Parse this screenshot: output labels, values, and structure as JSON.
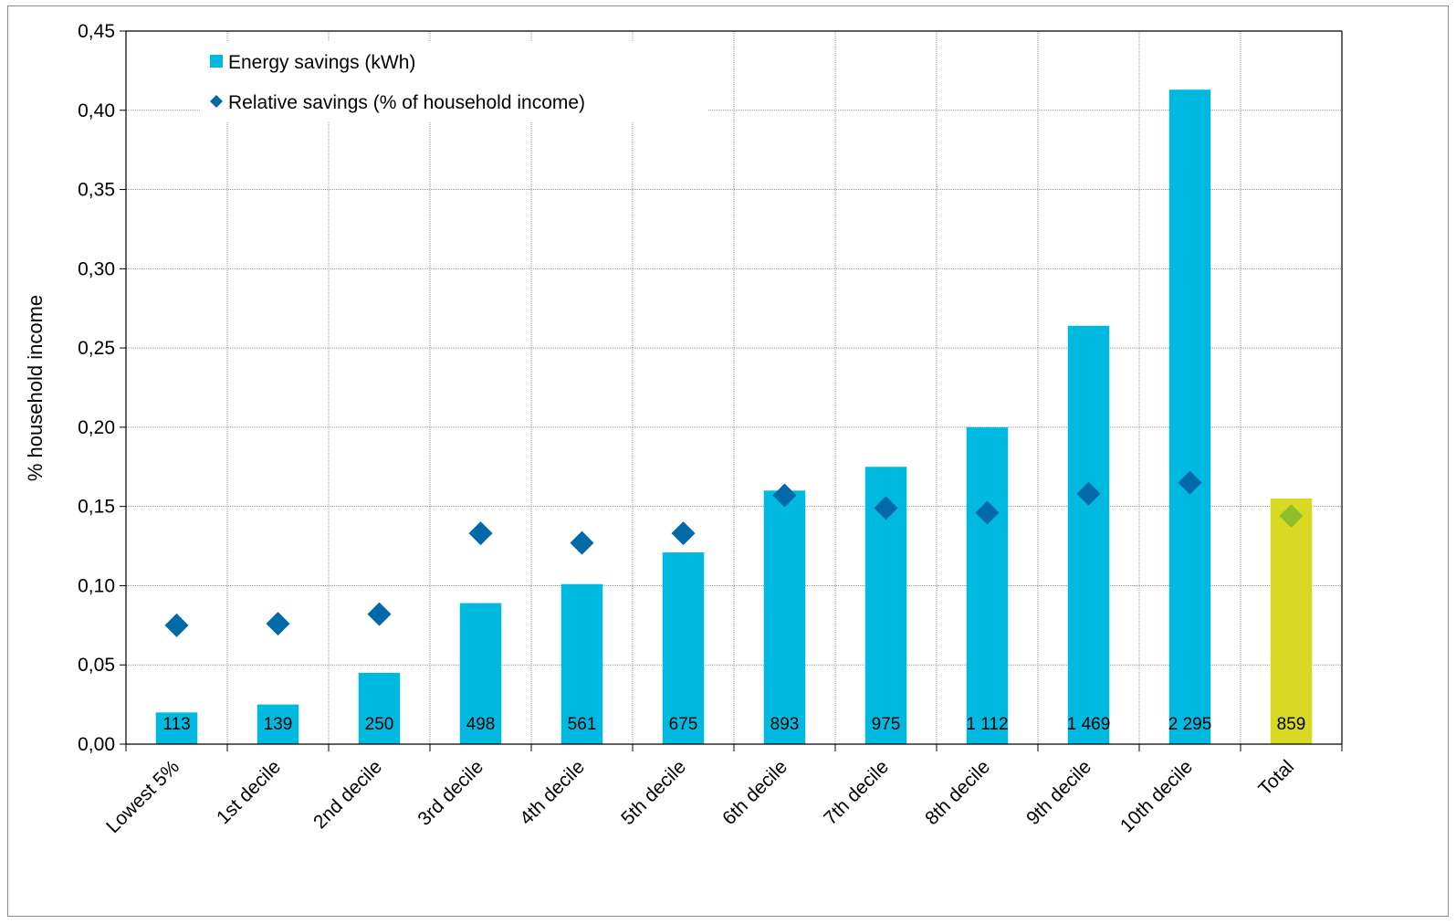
{
  "chart_data": {
    "type": "bar",
    "categories": [
      "Lowest 5%",
      "1st decile",
      "2nd decile",
      "3rd decile",
      "4th decile",
      "5th decile",
      "6th decile",
      "7th decile",
      "8th decile",
      "9th decile",
      "10th decile",
      "Total"
    ],
    "series": [
      {
        "name": "Energy savings (kWh)",
        "kind": "bar",
        "values": [
          0.02,
          0.025,
          0.045,
          0.089,
          0.101,
          0.121,
          0.16,
          0.175,
          0.2,
          0.264,
          0.413,
          0.155
        ],
        "labels": [
          "113",
          "139",
          "250",
          "498",
          "561",
          "675",
          "893",
          "975",
          "1 112",
          "1 469",
          "2 295",
          "859"
        ],
        "color": "#00b9e0",
        "highlight_color": "#d9d923"
      },
      {
        "name": "Relative savings (% of household income)",
        "kind": "scatter",
        "values": [
          0.075,
          0.076,
          0.082,
          0.133,
          0.127,
          0.133,
          0.157,
          0.149,
          0.146,
          0.158,
          0.165,
          0.144
        ],
        "color": "#0069a8",
        "highlight_color": "#8cbf2a"
      }
    ],
    "ylabel": "% household income",
    "ylim": [
      0,
      0.45
    ],
    "yticks": [
      "0,00",
      "0,05",
      "0,10",
      "0,15",
      "0,20",
      "0,25",
      "0,30",
      "0,35",
      "0,40",
      "0,45"
    ],
    "grid": true,
    "legend": "top-left"
  }
}
